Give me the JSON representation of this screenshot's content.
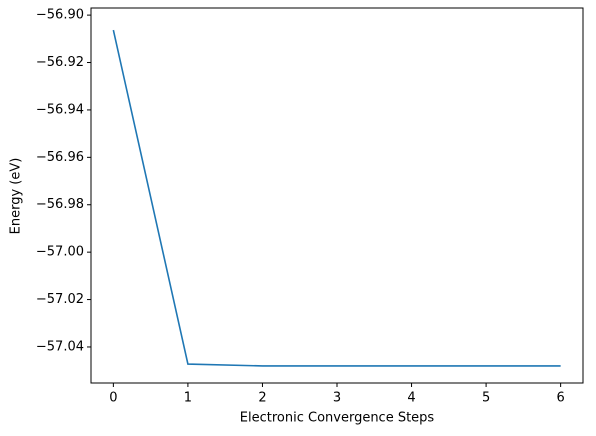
{
  "chart_data": {
    "type": "line",
    "x_label": "Electronic Convergence Steps",
    "y_label": "Energy (eV)",
    "x": [
      0,
      1,
      2,
      3,
      4,
      5,
      6
    ],
    "values": [
      -56.9063,
      -57.0472,
      -57.048,
      -57.048,
      -57.048,
      -57.048,
      -57.048
    ],
    "color": "#1f77b4",
    "xlim": [
      -0.3,
      6.3
    ],
    "xticks": [
      0,
      1,
      2,
      3,
      4,
      5,
      6
    ],
    "ylim": [
      -57.0552,
      -56.897
    ],
    "yticks": [
      {
        "value": -57.04,
        "label": "−57.04"
      },
      {
        "value": -57.02,
        "label": "−57.02"
      },
      {
        "value": -57.0,
        "label": "−57.00"
      },
      {
        "value": -56.98,
        "label": "−56.98"
      },
      {
        "value": -56.96,
        "label": "−56.96"
      },
      {
        "value": -56.94,
        "label": "−56.94"
      },
      {
        "value": -56.92,
        "label": "−56.92"
      },
      {
        "value": -56.9,
        "label": "−56.90"
      }
    ]
  }
}
